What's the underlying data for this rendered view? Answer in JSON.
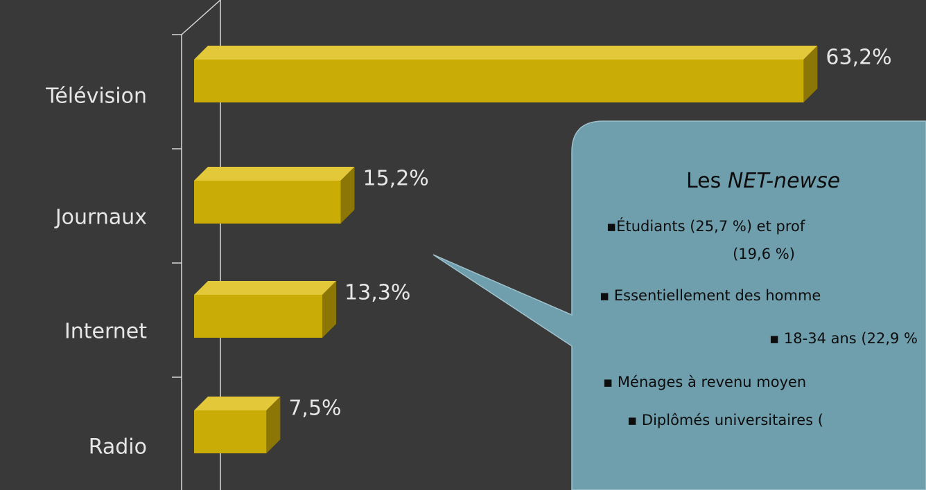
{
  "chart_data": {
    "type": "bar3d",
    "categories": [
      "Télévision",
      "Journaux",
      "Internet",
      "Radio"
    ],
    "values": [
      63.2,
      15.2,
      13.3,
      7.5
    ],
    "value_labels": [
      "63,2%",
      "15,2%",
      "13,3%",
      "7,5%"
    ],
    "color": "#c9ac06",
    "xlim": [
      0,
      70
    ]
  },
  "callout": {
    "title": "Les ",
    "title_italic": "NET-newse",
    "items": [
      "▪Étudiants (25,7 %) et prof",
      "(19,6 %)",
      "▪ Essentiellement des homme",
      "▪ 18-34 ans (22,9 %",
      "▪ Ménages à revenu moyen",
      "▪ Diplômés universitaires ("
    ]
  }
}
